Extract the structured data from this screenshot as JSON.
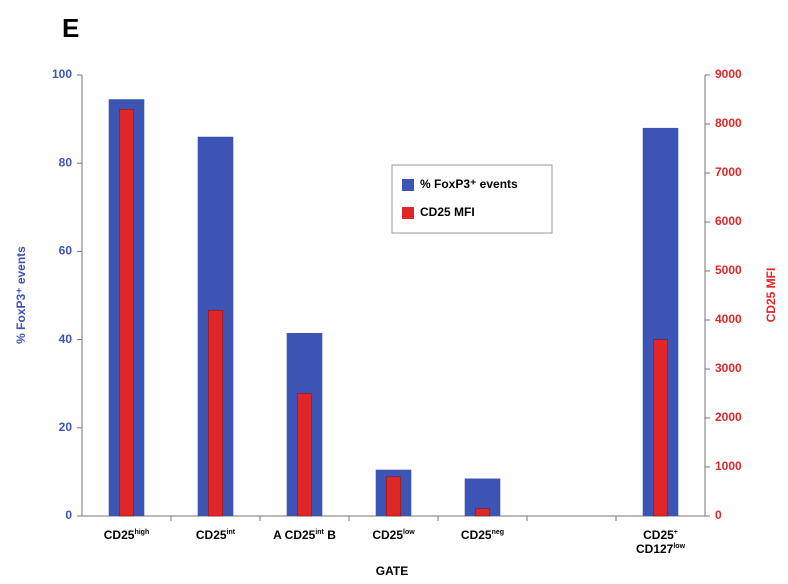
{
  "chart_data": {
    "type": "bar",
    "panel": "E",
    "xlabel": "GATE",
    "ylabel": "% FoxP3⁺ events",
    "y2label": "CD25 MFI",
    "categories": [
      [
        [
          "CD25",
          "high"
        ]
      ],
      [
        [
          "CD25",
          "int"
        ]
      ],
      [
        [
          "A CD25",
          "int",
          " B"
        ]
      ],
      [
        [
          "CD25",
          "low"
        ]
      ],
      [
        [
          "CD25",
          "neg"
        ]
      ],
      null,
      [
        [
          "CD25",
          "+"
        ],
        [
          "CD127",
          "low"
        ]
      ]
    ],
    "series": [
      {
        "name": "% FoxP3⁺ events",
        "color": "#3c55b4",
        "values": [
          94.5,
          86,
          41.5,
          10.5,
          8.5,
          null,
          88
        ]
      },
      {
        "name": "CD25 MFI",
        "color": "#e02626",
        "axis": "y2",
        "values": [
          8300,
          4200,
          2500,
          800,
          150,
          null,
          3600
        ]
      }
    ],
    "ylim": [
      0,
      100
    ],
    "yticks": [
      0,
      20,
      40,
      60,
      80,
      100
    ],
    "y2lim": [
      0,
      9000
    ],
    "y2ticks": [
      0,
      1000,
      2000,
      3000,
      4000,
      5000,
      6000,
      7000,
      8000,
      9000
    ],
    "legend": "center"
  }
}
